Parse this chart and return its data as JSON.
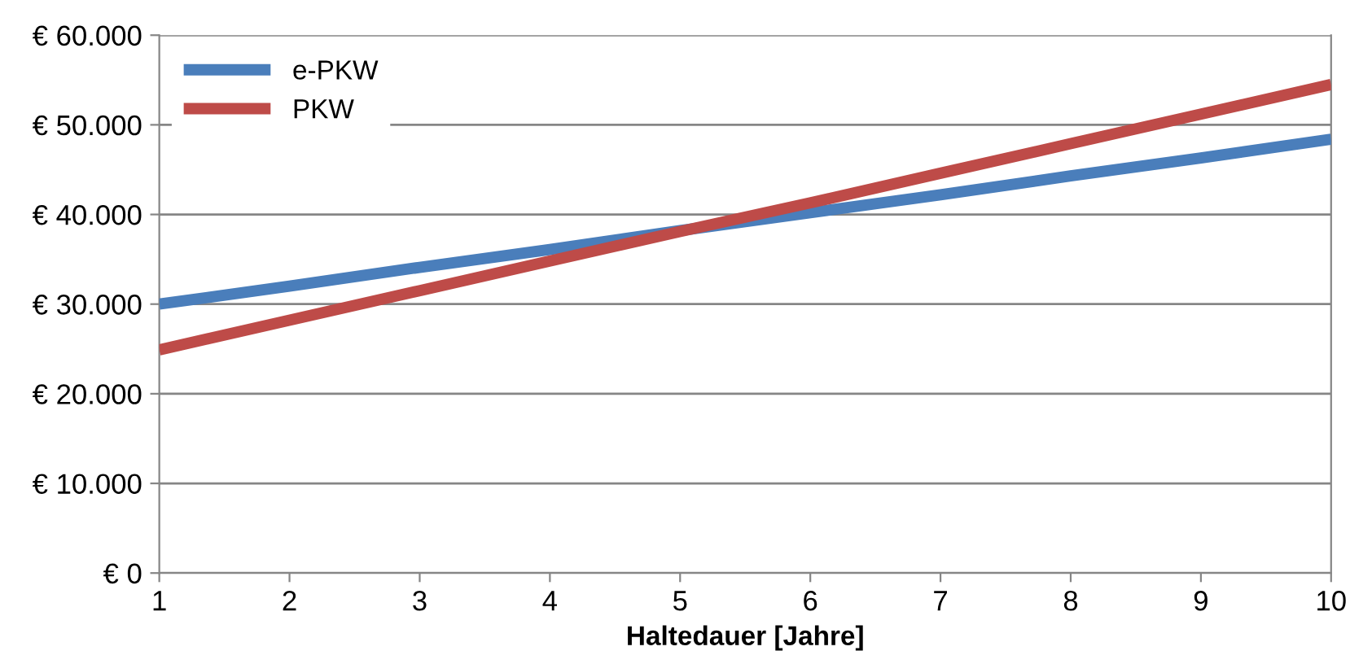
{
  "chart_data": {
    "type": "line",
    "xlabel": "Haltedauer [Jahre]",
    "x": [
      1,
      2,
      3,
      4,
      5,
      6,
      7,
      8,
      9,
      10
    ],
    "series": [
      {
        "name": "e-PKW",
        "color": "#4a7ebb",
        "values": [
          30000,
          32000,
          34100,
          36100,
          38200,
          40200,
          42200,
          44300,
          46300,
          48400
        ]
      },
      {
        "name": "PKW",
        "color": "#be4b48",
        "values": [
          24900,
          28200,
          31500,
          34800,
          38100,
          41300,
          44600,
          47900,
          51200,
          54500
        ]
      }
    ],
    "xlim": [
      1,
      10
    ],
    "xticks": [
      1,
      2,
      3,
      4,
      5,
      6,
      7,
      8,
      9,
      10
    ],
    "ylim": [
      0,
      60000
    ],
    "yticks": [
      {
        "value": 0,
        "label": "€ 0"
      },
      {
        "value": 10000,
        "label": "€ 10.000"
      },
      {
        "value": 20000,
        "label": "€ 20.000"
      },
      {
        "value": 30000,
        "label": "€ 30.000"
      },
      {
        "value": 40000,
        "label": "€ 40.000"
      },
      {
        "value": 50000,
        "label": "€ 50.000"
      },
      {
        "value": 60000,
        "label": "€ 60.000"
      }
    ],
    "grid": "y",
    "legend": "top left",
    "marker": "none",
    "line_style": "solid"
  }
}
